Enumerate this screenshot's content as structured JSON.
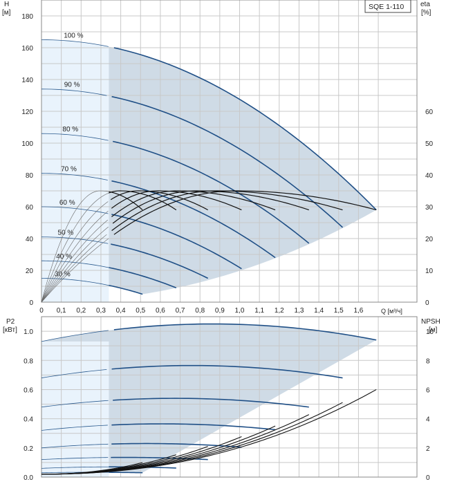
{
  "chart_data": [
    {
      "type": "line",
      "name": "head-chart",
      "model_label": "SQE 1-110",
      "xlabel": "Q [м³/ч]",
      "ylabel_left": "H",
      "ylabel_left_unit": "[м]",
      "ylabel_right": "eta",
      "ylabel_right_unit": "[%]",
      "xlim": [
        0,
        1.7
      ],
      "ylim_left": [
        0,
        190
      ],
      "ylim_right": [
        0,
        95
      ],
      "grid": true,
      "x_ticks": [
        "0",
        "0,1",
        "0,2",
        "0,3",
        "0,4",
        "0,5",
        "0,6",
        "0,7",
        "0,8",
        "0,9",
        "1,0",
        "1,1",
        "1,2",
        "1,3",
        "1,4",
        "1,5",
        "1,6"
      ],
      "y_left_ticks": [
        "0",
        "20",
        "40",
        "60",
        "80",
        "100",
        "120",
        "140",
        "160",
        "180"
      ],
      "y_right_ticks": [
        "0",
        "10",
        "20",
        "30",
        "40",
        "50",
        "60"
      ],
      "highlight_left_q": 0.34,
      "head_curves": [
        {
          "label": "100 %",
          "h0": 165,
          "qmax": 1.69,
          "hend": 58
        },
        {
          "label": "90 %",
          "h0": 134,
          "qmax": 1.52,
          "hend": 47
        },
        {
          "label": "80 %",
          "h0": 106,
          "qmax": 1.35,
          "hend": 37
        },
        {
          "label": "70 %",
          "h0": 81,
          "qmax": 1.18,
          "hend": 28
        },
        {
          "label": "60 %",
          "h0": 60,
          "qmax": 1.01,
          "hend": 21
        },
        {
          "label": "50 %",
          "h0": 41,
          "qmax": 0.84,
          "hend": 15
        },
        {
          "label": "40 %",
          "h0": 26,
          "qmax": 0.68,
          "hend": 9
        },
        {
          "label": "30 %",
          "h0": 15,
          "qmax": 0.51,
          "hend": 5
        }
      ],
      "efficiency": {
        "peak": 35,
        "end": 29,
        "curves_count": 8
      }
    },
    {
      "type": "line",
      "name": "power-chart",
      "ylabel_left": "P2",
      "ylabel_left_unit": "[кВт]",
      "ylabel_right": "NPSH",
      "ylabel_right_unit": "[м]",
      "xlim": [
        0,
        1.7
      ],
      "ylim_left": [
        0,
        1.1
      ],
      "ylim_right": [
        0,
        11
      ],
      "grid": true,
      "y_left_ticks": [
        "0.0",
        "0.2",
        "0.4",
        "0.6",
        "0.8",
        "1.0"
      ],
      "y_right_ticks": [
        "0",
        "2",
        "4",
        "6",
        "8",
        "10"
      ],
      "power_curves": [
        {
          "p0": 0.93,
          "pmax": 1.05,
          "pend": 0.94
        },
        {
          "p0": 0.68,
          "pmax": 0.765,
          "pend": 0.68
        },
        {
          "p0": 0.48,
          "pmax": 0.54,
          "pend": 0.48
        },
        {
          "p0": 0.32,
          "pmax": 0.365,
          "pend": 0.325
        },
        {
          "p0": 0.2,
          "pmax": 0.23,
          "pend": 0.205
        },
        {
          "p0": 0.12,
          "pmax": 0.135,
          "pend": 0.12
        },
        {
          "p0": 0.06,
          "pmax": 0.07,
          "pend": 0.062
        },
        {
          "p0": 0.03,
          "pmax": 0.033,
          "pend": 0.03
        }
      ],
      "npsh_end": 6.0
    }
  ]
}
